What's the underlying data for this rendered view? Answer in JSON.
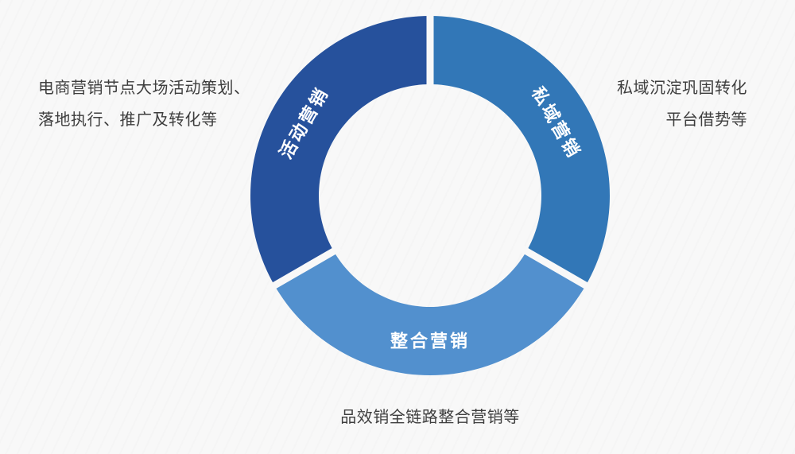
{
  "chart_data": {
    "type": "pie",
    "subtype": "donut",
    "title": "",
    "legend": "none",
    "start_angle_deg": 90,
    "direction": "clockwise",
    "label_color": "#ffffff",
    "gap_color": "#f8f8f8",
    "background_color": "#f8f8f8",
    "annotation_text_color": "#3e3e3e",
    "segments": [
      {
        "label": "私域营销",
        "value": 1,
        "share_pct": 33.3,
        "color": "#3277b7"
      },
      {
        "label": "整合营销",
        "value": 1,
        "share_pct": 33.3,
        "color": "#5290ce"
      },
      {
        "label": "活动营销",
        "value": 1,
        "share_pct": 33.3,
        "color": "#26519c"
      }
    ],
    "annotations": {
      "left": {
        "lines": [
          "电商营销节点大场活动策划、",
          "落地执行、推广及转化等"
        ]
      },
      "right": {
        "lines": [
          "私域沉淀巩固转化",
          "平台借势等"
        ]
      },
      "bottom": {
        "lines": [
          "品效销全链路整合营销等"
        ]
      }
    }
  }
}
